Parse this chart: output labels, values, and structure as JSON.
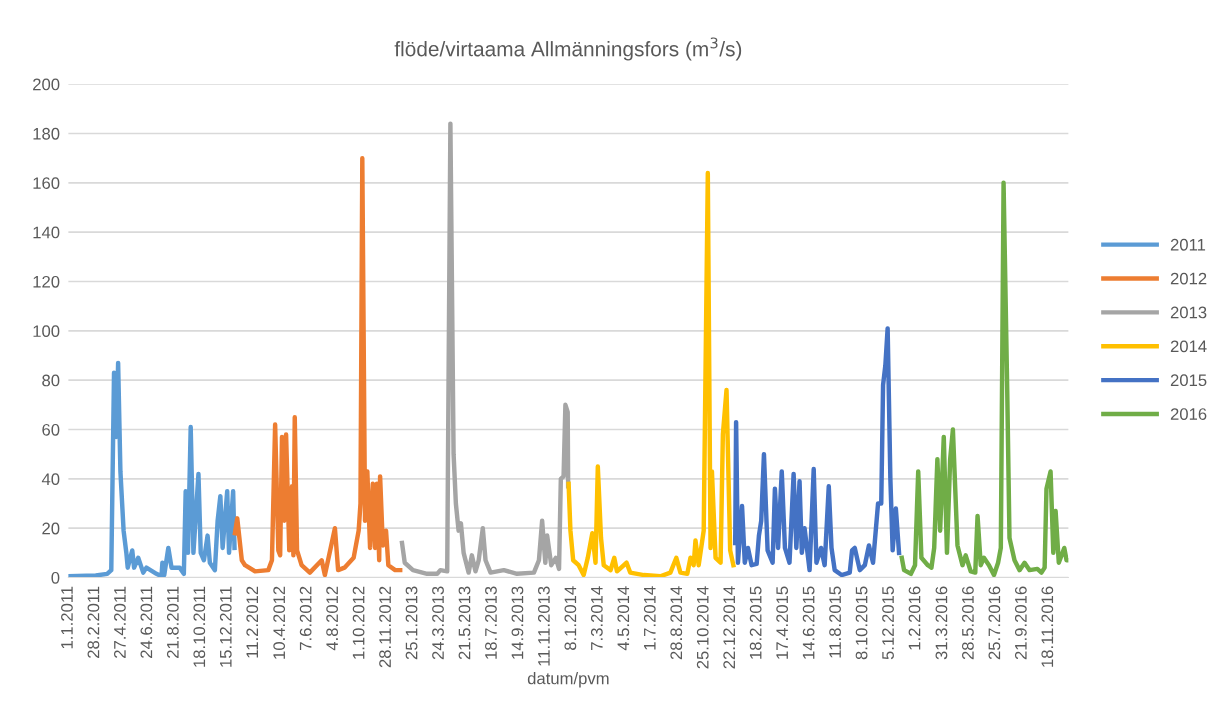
{
  "chart_data": {
    "type": "line",
    "title": "flöde/virtaama Allmänningsfors (m$^{3}$/s)",
    "xlabel": "datum/pvm",
    "ylim": [
      0,
      200
    ],
    "yticks": [
      0,
      20,
      40,
      60,
      80,
      100,
      120,
      140,
      160,
      180,
      200
    ],
    "xlim": [
      "2011-01-01",
      "2016-12-31"
    ],
    "xticks": [
      {
        "value": "2011-01-01",
        "label": "1.1.2011"
      },
      {
        "value": "2011-02-28",
        "label": "28.2.2011"
      },
      {
        "value": "2011-04-27",
        "label": "27.4.2011"
      },
      {
        "value": "2011-06-24",
        "label": "24.6.2011"
      },
      {
        "value": "2011-08-21",
        "label": "21.8.2011"
      },
      {
        "value": "2011-10-18",
        "label": "18.10.2011"
      },
      {
        "value": "2011-12-15",
        "label": "15.12.2011"
      },
      {
        "value": "2012-02-11",
        "label": "11.2.2012"
      },
      {
        "value": "2012-04-10",
        "label": "10.4.2012"
      },
      {
        "value": "2012-06-07",
        "label": "7.6.2012"
      },
      {
        "value": "2012-08-04",
        "label": "4.8.2012"
      },
      {
        "value": "2012-10-01",
        "label": "1.10.2012"
      },
      {
        "value": "2012-11-28",
        "label": "28.11.2012"
      },
      {
        "value": "2013-01-25",
        "label": "25.1.2013"
      },
      {
        "value": "2013-03-24",
        "label": "24.3.2013"
      },
      {
        "value": "2013-05-21",
        "label": "21.5.2013"
      },
      {
        "value": "2013-07-18",
        "label": "18.7.2013"
      },
      {
        "value": "2013-09-14",
        "label": "14.9.2013"
      },
      {
        "value": "2013-11-11",
        "label": "11.11.2013"
      },
      {
        "value": "2014-01-08",
        "label": "8.1.2014"
      },
      {
        "value": "2014-03-07",
        "label": "7.3.2014"
      },
      {
        "value": "2014-05-04",
        "label": "4.5.2014"
      },
      {
        "value": "2014-07-01",
        "label": "1.7.2014"
      },
      {
        "value": "2014-08-28",
        "label": "28.8.2014"
      },
      {
        "value": "2014-10-25",
        "label": "25.10.2014"
      },
      {
        "value": "2014-12-22",
        "label": "22.12.2014"
      },
      {
        "value": "2015-02-18",
        "label": "18.2.2015"
      },
      {
        "value": "2015-04-17",
        "label": "17.4.2015"
      },
      {
        "value": "2015-06-14",
        "label": "14.6.2015"
      },
      {
        "value": "2015-08-11",
        "label": "11.8.2015"
      },
      {
        "value": "2015-10-08",
        "label": "8.10.2015"
      },
      {
        "value": "2015-12-05",
        "label": "5.12.2015"
      },
      {
        "value": "2016-02-01",
        "label": "1.2.2016"
      },
      {
        "value": "2016-03-31",
        "label": "31.3.2016"
      },
      {
        "value": "2016-05-28",
        "label": "28.5.2016"
      },
      {
        "value": "2016-07-25",
        "label": "25.7.2016"
      },
      {
        "value": "2016-09-21",
        "label": "21.9.2016"
      },
      {
        "value": "2016-11-18",
        "label": "18.11.2016"
      }
    ],
    "grid": "y",
    "legend": "right",
    "marker": "none",
    "line_style": "solid",
    "series": [
      {
        "name": "2011",
        "color": "#5b9bd5",
        "x": [
          "2011-01-01",
          "2011-03-02",
          "2011-03-27",
          "2011-04-05",
          "2011-04-11",
          "2011-04-16",
          "2011-04-20",
          "2011-04-25",
          "2011-05-02",
          "2011-05-08",
          "2011-05-11",
          "2011-05-21",
          "2011-05-25",
          "2011-06-03",
          "2011-06-14",
          "2011-06-21",
          "2011-07-13",
          "2011-07-24",
          "2011-07-26",
          "2011-07-30",
          "2011-08-08",
          "2011-08-15",
          "2011-09-02",
          "2011-09-11",
          "2011-09-15",
          "2011-09-20",
          "2011-09-26",
          "2011-10-02",
          "2011-10-13",
          "2011-10-18",
          "2011-10-25",
          "2011-11-02",
          "2011-11-07",
          "2011-11-18",
          "2011-11-24",
          "2011-11-30",
          "2011-12-05",
          "2011-12-15",
          "2011-12-19",
          "2011-12-28",
          "2011-12-31"
        ],
        "values": [
          0.5,
          0.8,
          1.5,
          3,
          83,
          57,
          87,
          43,
          19,
          10,
          4,
          11,
          4,
          8,
          2,
          4,
          1.5,
          0.5,
          6,
          1,
          12,
          4,
          4,
          1.5,
          35,
          10,
          61,
          10,
          42,
          10,
          7,
          17,
          6,
          3,
          23,
          33,
          12,
          35,
          10,
          35,
          12
        ]
      },
      {
        "name": "2012",
        "color": "#ed7d31",
        "x": [
          "2012-01-01",
          "2012-01-06",
          "2012-01-16",
          "2012-01-23",
          "2012-02-14",
          "2012-03-14",
          "2012-03-22",
          "2012-03-29",
          "2012-04-05",
          "2012-04-09",
          "2012-04-13",
          "2012-04-18",
          "2012-04-22",
          "2012-04-29",
          "2012-05-05",
          "2012-05-08",
          "2012-05-11",
          "2012-05-16",
          "2012-05-26",
          "2012-06-13",
          "2012-07-09",
          "2012-07-16",
          "2012-08-07",
          "2012-08-14",
          "2012-08-28",
          "2012-09-17",
          "2012-09-28",
          "2012-10-02",
          "2012-10-06",
          "2012-10-12",
          "2012-10-17",
          "2012-10-23",
          "2012-10-29",
          "2012-11-03",
          "2012-11-07",
          "2012-11-12",
          "2012-11-14",
          "2012-11-20",
          "2012-11-27",
          "2012-12-02",
          "2012-12-17",
          "2012-12-28"
        ],
        "values": [
          18,
          24,
          7,
          5,
          2.5,
          3,
          7,
          62,
          11,
          9,
          57,
          23,
          58,
          11,
          37,
          9,
          65,
          11,
          5,
          2,
          7,
          1,
          20,
          3,
          4,
          8,
          19,
          30,
          170,
          23,
          43,
          12,
          38,
          12,
          38,
          7,
          41,
          13,
          19,
          5,
          3,
          3
        ]
      },
      {
        "name": "2013",
        "color": "#a5a5a5",
        "x": [
          "2013-01-01",
          "2013-01-07",
          "2013-01-25",
          "2013-02-25",
          "2013-03-19",
          "2013-03-26",
          "2013-04-10",
          "2013-04-17",
          "2013-04-24",
          "2013-04-29",
          "2013-05-05",
          "2013-05-10",
          "2013-05-16",
          "2013-05-27",
          "2013-06-03",
          "2013-06-11",
          "2013-06-18",
          "2013-06-27",
          "2013-07-03",
          "2013-07-14",
          "2013-08-12",
          "2013-09-10",
          "2013-10-17",
          "2013-10-28",
          "2013-11-04",
          "2013-11-11",
          "2013-11-15",
          "2013-11-24",
          "2013-12-04",
          "2013-12-11",
          "2013-12-15",
          "2013-12-21",
          "2013-12-25",
          "2013-12-30",
          "2013-12-31"
        ],
        "values": [
          14,
          6,
          3,
          1.5,
          1.5,
          3,
          2.5,
          184,
          50,
          30,
          19,
          22,
          10,
          2,
          9,
          2.5,
          7,
          20,
          7,
          2,
          3,
          1.5,
          2,
          7,
          23,
          6,
          17,
          5,
          8,
          3.5,
          40,
          41,
          70,
          67,
          37
        ]
      },
      {
        "name": "2014",
        "color": "#ffc000",
        "x": [
          "2014-01-01",
          "2014-01-05",
          "2014-01-11",
          "2014-01-23",
          "2014-02-03",
          "2014-02-12",
          "2014-02-22",
          "2014-03-01",
          "2014-03-06",
          "2014-03-13",
          "2014-03-19",
          "2014-04-03",
          "2014-04-11",
          "2014-04-17",
          "2014-05-08",
          "2014-05-16",
          "2014-06-15",
          "2014-07-21",
          "2014-08-12",
          "2014-08-25",
          "2014-09-03",
          "2014-09-18",
          "2014-09-25",
          "2014-10-02",
          "2014-10-06",
          "2014-10-13",
          "2014-10-24",
          "2014-11-02",
          "2014-11-08",
          "2014-11-11",
          "2014-11-19",
          "2014-11-30",
          "2014-12-05",
          "2014-12-13",
          "2014-12-21",
          "2014-12-28"
        ],
        "values": [
          38,
          19,
          7,
          5,
          1,
          8,
          18,
          6,
          45,
          16,
          5,
          3,
          8,
          2.5,
          6,
          2,
          1,
          0.5,
          2,
          8,
          2,
          1.5,
          8,
          5,
          15,
          5,
          19,
          164,
          12,
          43,
          8,
          6,
          58,
          76,
          11,
          5
        ]
      },
      {
        "name": "2015",
        "color": "#4472c4",
        "x": [
          "2015-01-01",
          "2015-01-03",
          "2015-01-07",
          "2015-01-16",
          "2015-01-22",
          "2015-01-29",
          "2015-02-06",
          "2015-02-17",
          "2015-02-22",
          "2015-02-27",
          "2015-03-05",
          "2015-03-13",
          "2015-03-24",
          "2015-03-29",
          "2015-04-05",
          "2015-04-13",
          "2015-04-20",
          "2015-04-30",
          "2015-05-09",
          "2015-05-15",
          "2015-05-22",
          "2015-05-27",
          "2015-06-02",
          "2015-06-13",
          "2015-06-22",
          "2015-06-28",
          "2015-07-08",
          "2015-07-16",
          "2015-07-25",
          "2015-07-31",
          "2015-08-07",
          "2015-08-22",
          "2015-09-09",
          "2015-09-14",
          "2015-09-20",
          "2015-10-01",
          "2015-10-12",
          "2015-10-21",
          "2015-10-30",
          "2015-11-10",
          "2015-11-17",
          "2015-11-21",
          "2015-11-26",
          "2015-12-01",
          "2015-12-07",
          "2015-12-12",
          "2015-12-19",
          "2015-12-26"
        ],
        "values": [
          14,
          63,
          6,
          29,
          6,
          12,
          5,
          5.5,
          17,
          23,
          50,
          11,
          6,
          36,
          12,
          43,
          12,
          6,
          42,
          12,
          39,
          10,
          20,
          3,
          44,
          6,
          12,
          5,
          37,
          12,
          3,
          1,
          2,
          11,
          12,
          3,
          5,
          13,
          6,
          30,
          30,
          78,
          86,
          101,
          40,
          11,
          28,
          10
        ]
      },
      {
        "name": "2016",
        "color": "#70ad47",
        "x": [
          "2016-01-01",
          "2016-01-06",
          "2016-01-21",
          "2016-01-30",
          "2016-02-06",
          "2016-02-13",
          "2016-02-27",
          "2016-03-06",
          "2016-03-12",
          "2016-03-19",
          "2016-03-25",
          "2016-04-02",
          "2016-04-09",
          "2016-04-16",
          "2016-04-22",
          "2016-05-02",
          "2016-05-13",
          "2016-05-20",
          "2016-05-31",
          "2016-06-10",
          "2016-06-15",
          "2016-06-22",
          "2016-06-29",
          "2016-07-10",
          "2016-07-21",
          "2016-07-30",
          "2016-08-05",
          "2016-08-11",
          "2016-08-19",
          "2016-08-24",
          "2016-09-04",
          "2016-09-15",
          "2016-09-26",
          "2016-10-07",
          "2016-10-24",
          "2016-11-02",
          "2016-11-09",
          "2016-11-13",
          "2016-11-22",
          "2016-11-28",
          "2016-12-03",
          "2016-12-10",
          "2016-12-22",
          "2016-12-27",
          "2016-12-31"
        ],
        "values": [
          8,
          3,
          1.5,
          5,
          43,
          8,
          5,
          4,
          12,
          48,
          19,
          57,
          10,
          48,
          60,
          13,
          5,
          9,
          2.5,
          2,
          25,
          5,
          8,
          5,
          1,
          6,
          12,
          160,
          76,
          16,
          7,
          3,
          6,
          3,
          3.5,
          2,
          4,
          36,
          43,
          10,
          27,
          6,
          12,
          7,
          7
        ]
      }
    ]
  }
}
